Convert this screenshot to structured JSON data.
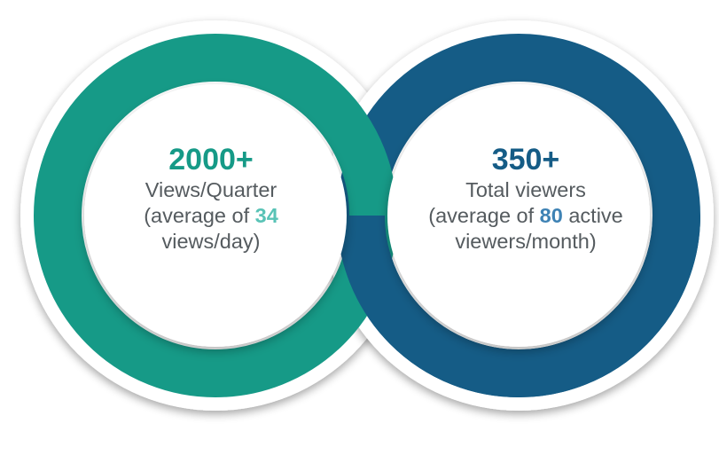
{
  "colors": {
    "teal": "#169a87",
    "navy": "#155c86",
    "text_gray": "#555b5f",
    "highlight_teal": "#59c3b6",
    "highlight_blue": "#3e82b4"
  },
  "left_stat": {
    "number": "2000+",
    "label": "Views/Quarter",
    "detail_prefix": "(average of ",
    "detail_value": "34",
    "detail_suffix": "views/day)"
  },
  "right_stat": {
    "number": "350+",
    "label": "Total viewers",
    "detail_prefix": "(average of ",
    "detail_value": "80",
    "detail_after_value": " active",
    "detail_suffix": "viewers/month)"
  }
}
